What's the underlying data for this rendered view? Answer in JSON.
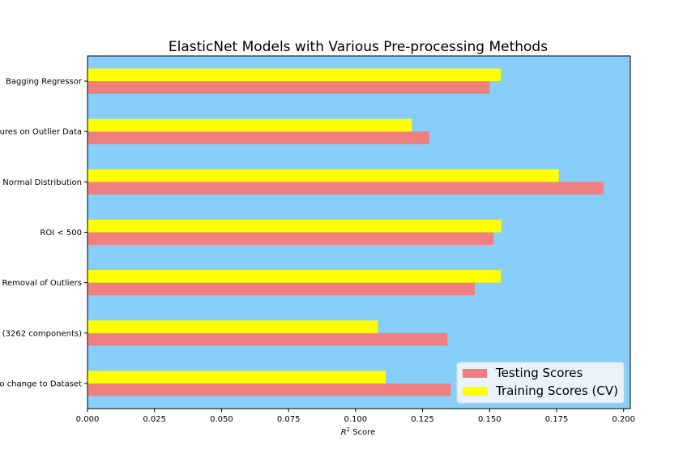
{
  "chart_data": {
    "type": "bar",
    "orientation": "horizontal",
    "title": "ElasticNet Models with Various Pre-processing Methods",
    "xlabel_prefix": "R",
    "xlabel_sup": "2",
    "xlabel_suffix": " Score",
    "ylabel": "",
    "xlim": [
      0.0,
      0.2025
    ],
    "xticks": [
      "0.000",
      "0.025",
      "0.050",
      "0.075",
      "0.100",
      "0.125",
      "0.150",
      "0.175",
      "0.200"
    ],
    "categories": [
      "o change to Dataset",
      "(3262 components)",
      "Removal of Outliers",
      "ROI < 500",
      "Normal Distribution",
      "ures on Outlier Data",
      "Bagging Regressor"
    ],
    "series": [
      {
        "name": "Testing Scores",
        "color": "#f08080",
        "values": [
          0.1355,
          0.1343,
          0.1445,
          0.1515,
          0.1925,
          0.1275,
          0.15
        ]
      },
      {
        "name": "Training Scores (CV)",
        "color": "#ffff00",
        "values": [
          0.1112,
          0.1083,
          0.1542,
          0.1544,
          0.1758,
          0.121,
          0.1542
        ]
      }
    ],
    "plot_background": "#87cefa",
    "grid": false,
    "legend_position": "lower right"
  }
}
